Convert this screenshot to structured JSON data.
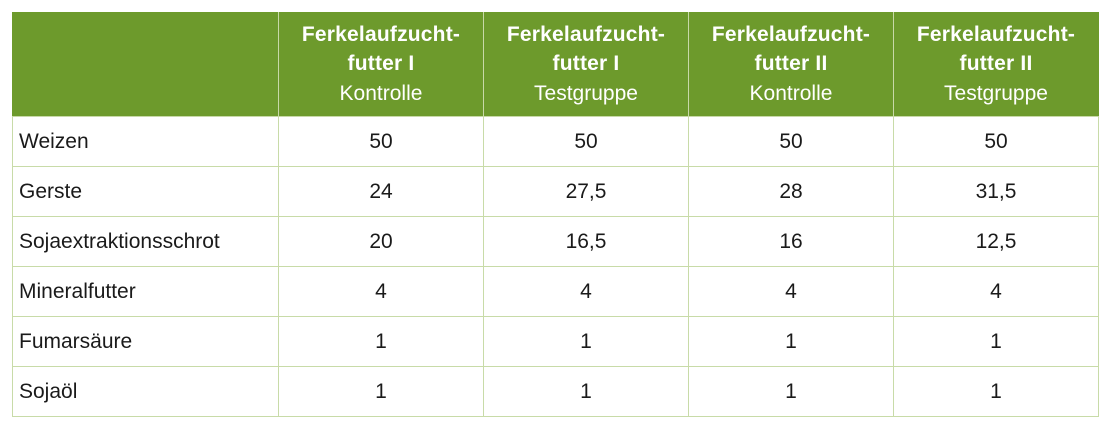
{
  "table": {
    "columns": [
      {
        "title": "Ferkelaufzucht-\nfutter I",
        "title_line1": "Ferkelaufzucht-",
        "title_line2": "futter I",
        "subtitle": "Kontrolle"
      },
      {
        "title": "Ferkelaufzucht-\nfutter I",
        "title_line1": "Ferkelaufzucht-",
        "title_line2": "futter I",
        "subtitle": "Testgruppe"
      },
      {
        "title": "Ferkelaufzucht-\nfutter II",
        "title_line1": "Ferkelaufzucht-",
        "title_line2": "futter II",
        "subtitle": "Kontrolle"
      },
      {
        "title": "Ferkelaufzucht-\nfutter II",
        "title_line1": "Ferkelaufzucht-",
        "title_line2": "futter II",
        "subtitle": "Testgruppe"
      }
    ],
    "rows": [
      {
        "label": "Weizen",
        "values": [
          "50",
          "50",
          "50",
          "50"
        ]
      },
      {
        "label": "Gerste",
        "values": [
          "24",
          "27,5",
          "28",
          "31,5"
        ]
      },
      {
        "label": "Sojaextraktionsschrot",
        "values": [
          "20",
          "16,5",
          "16",
          "12,5"
        ]
      },
      {
        "label": "Mineralfutter",
        "values": [
          "4",
          "4",
          "4",
          "4"
        ]
      },
      {
        "label": "Fumarsäure",
        "values": [
          "1",
          "1",
          "1",
          "1"
        ]
      },
      {
        "label": "Sojaöl",
        "values": [
          "1",
          "1",
          "1",
          "1"
        ]
      }
    ],
    "header_color": "#6d9a2c",
    "grid_color": "#c8dba8"
  }
}
